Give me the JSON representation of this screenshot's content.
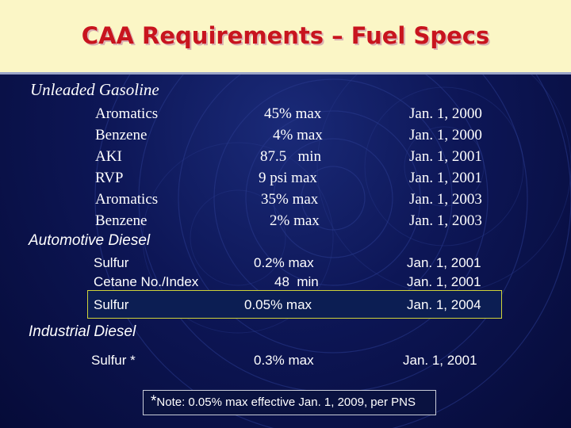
{
  "slide": {
    "title": "CAA Requirements – Fuel Specs",
    "gasoline": {
      "heading": "Unleaded Gasoline",
      "rows": [
        {
          "param": "Aromatics",
          "value": "45% max",
          "date": "Jan. 1, 2000"
        },
        {
          "param": "Benzene",
          "value": "4% max",
          "date": "Jan. 1, 2000"
        },
        {
          "param": "AKI",
          "value": "87.5   min",
          "date": "Jan. 1, 2001"
        },
        {
          "param": "RVP",
          "value": "9 psi max",
          "date": "Jan. 1, 2001"
        },
        {
          "param": "Aromatics",
          "value": "35% max",
          "date": "Jan. 1, 2003"
        },
        {
          "param": "Benzene",
          "value": "2% max",
          "date": "Jan. 1, 2003"
        }
      ]
    },
    "automotive_diesel": {
      "heading": "Automotive Diesel",
      "rows": [
        {
          "param": "Sulfur",
          "value": "0.2% max",
          "date": "Jan. 1, 2001"
        },
        {
          "param": "Cetane No./Index",
          "value": "48  min",
          "date": "Jan. 1, 2001"
        },
        {
          "param": "Sulfur",
          "value": "0.05% max",
          "date": "Jan. 1, 2004"
        }
      ]
    },
    "industrial_diesel": {
      "heading": "Industrial Diesel",
      "rows": [
        {
          "param": "Sulfur *",
          "value": "0.3% max",
          "date": "Jan. 1, 2001"
        }
      ]
    },
    "note": {
      "asterisk": "*",
      "text": "Note: 0.05% max effective Jan. 1, 2009, per PNS"
    }
  },
  "colors": {
    "title": "#c8141e",
    "header_background": "#fbf6c6",
    "slide_background": "#0d1656",
    "highlight_border": "#cfd33a"
  }
}
